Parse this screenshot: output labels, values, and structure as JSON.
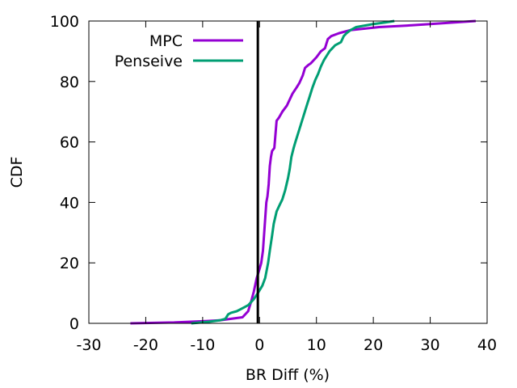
{
  "chart_data": {
    "type": "line",
    "xlabel": "BR Diff (%)",
    "ylabel": "CDF",
    "xlim": [
      -30,
      40
    ],
    "ylim": [
      0,
      100
    ],
    "xticks": [
      "-30",
      "-20",
      "-10",
      "0",
      "10",
      "20",
      "30",
      "40"
    ],
    "yticks": [
      "0",
      "20",
      "40",
      "60",
      "80",
      "100"
    ],
    "grid": false,
    "legend_position": "top-left",
    "reference_line_x": -0.3,
    "series": [
      {
        "name": "MPC",
        "color": "#9400d3",
        "x": [
          -22.7,
          -15,
          -10,
          -7,
          -5,
          -3,
          -2,
          -1.5,
          -1,
          -0.5,
          0,
          0.3,
          0.6,
          0.9,
          1.2,
          1.4,
          1.6,
          1.8,
          2.0,
          2.2,
          2.6,
          3.0,
          3.4,
          4.0,
          4.8,
          5.3,
          5.8,
          6.5,
          7.0,
          7.6,
          8.0,
          8.6,
          9.0,
          10.0,
          10.8,
          11.5,
          12.0,
          12.6,
          14.0,
          16.0,
          18.5,
          21.0,
          26.0,
          30.0,
          34.0,
          38.0
        ],
        "y": [
          0,
          0.3,
          0.7,
          1.0,
          1.5,
          2.0,
          4.0,
          7.0,
          10.5,
          15.0,
          18.0,
          20.0,
          24.0,
          32.0,
          40.0,
          42.0,
          46.0,
          52.0,
          55.0,
          57.0,
          58.0,
          67.0,
          68.0,
          70.0,
          72.0,
          74.0,
          76.0,
          78.0,
          79.5,
          82.0,
          84.5,
          85.5,
          86.0,
          88.0,
          90.0,
          91.0,
          94.0,
          95.0,
          96.0,
          97.0,
          97.5,
          98.0,
          98.5,
          99.0,
          99.5,
          100.0
        ]
      },
      {
        "name": "Penseive",
        "color": "#009e73",
        "x": [
          -12,
          -9,
          -7,
          -6,
          -5.5,
          -5,
          -4,
          -3,
          -2,
          -1.5,
          -1,
          -0.3,
          0.5,
          1.0,
          1.5,
          1.8,
          2.2,
          2.5,
          3.0,
          3.5,
          4.0,
          4.5,
          5.0,
          5.3,
          5.6,
          6.0,
          6.3,
          6.8,
          7.3,
          7.8,
          8.3,
          8.8,
          9.3,
          9.8,
          10.3,
          10.8,
          11.3,
          11.8,
          12.3,
          12.8,
          13.3,
          13.8,
          14.3,
          14.8,
          15.3,
          16.0,
          17.0,
          18.5,
          20.0,
          22.0,
          23.7
        ],
        "y": [
          0,
          0.5,
          1.0,
          1.5,
          3.0,
          3.5,
          4.0,
          5.0,
          6.0,
          7.0,
          8.0,
          10.0,
          12.5,
          15.0,
          20.0,
          24.0,
          29.0,
          33.0,
          37.0,
          39.0,
          41.0,
          44.0,
          48.0,
          51.0,
          55.0,
          58.0,
          60.0,
          63.0,
          66.0,
          69.0,
          72.0,
          75.0,
          78.0,
          80.5,
          82.5,
          85.0,
          87.0,
          88.5,
          90.0,
          91.0,
          92.0,
          92.5,
          93.0,
          95.0,
          96.0,
          97.0,
          98.0,
          98.5,
          99.0,
          99.5,
          100.0
        ]
      }
    ]
  }
}
